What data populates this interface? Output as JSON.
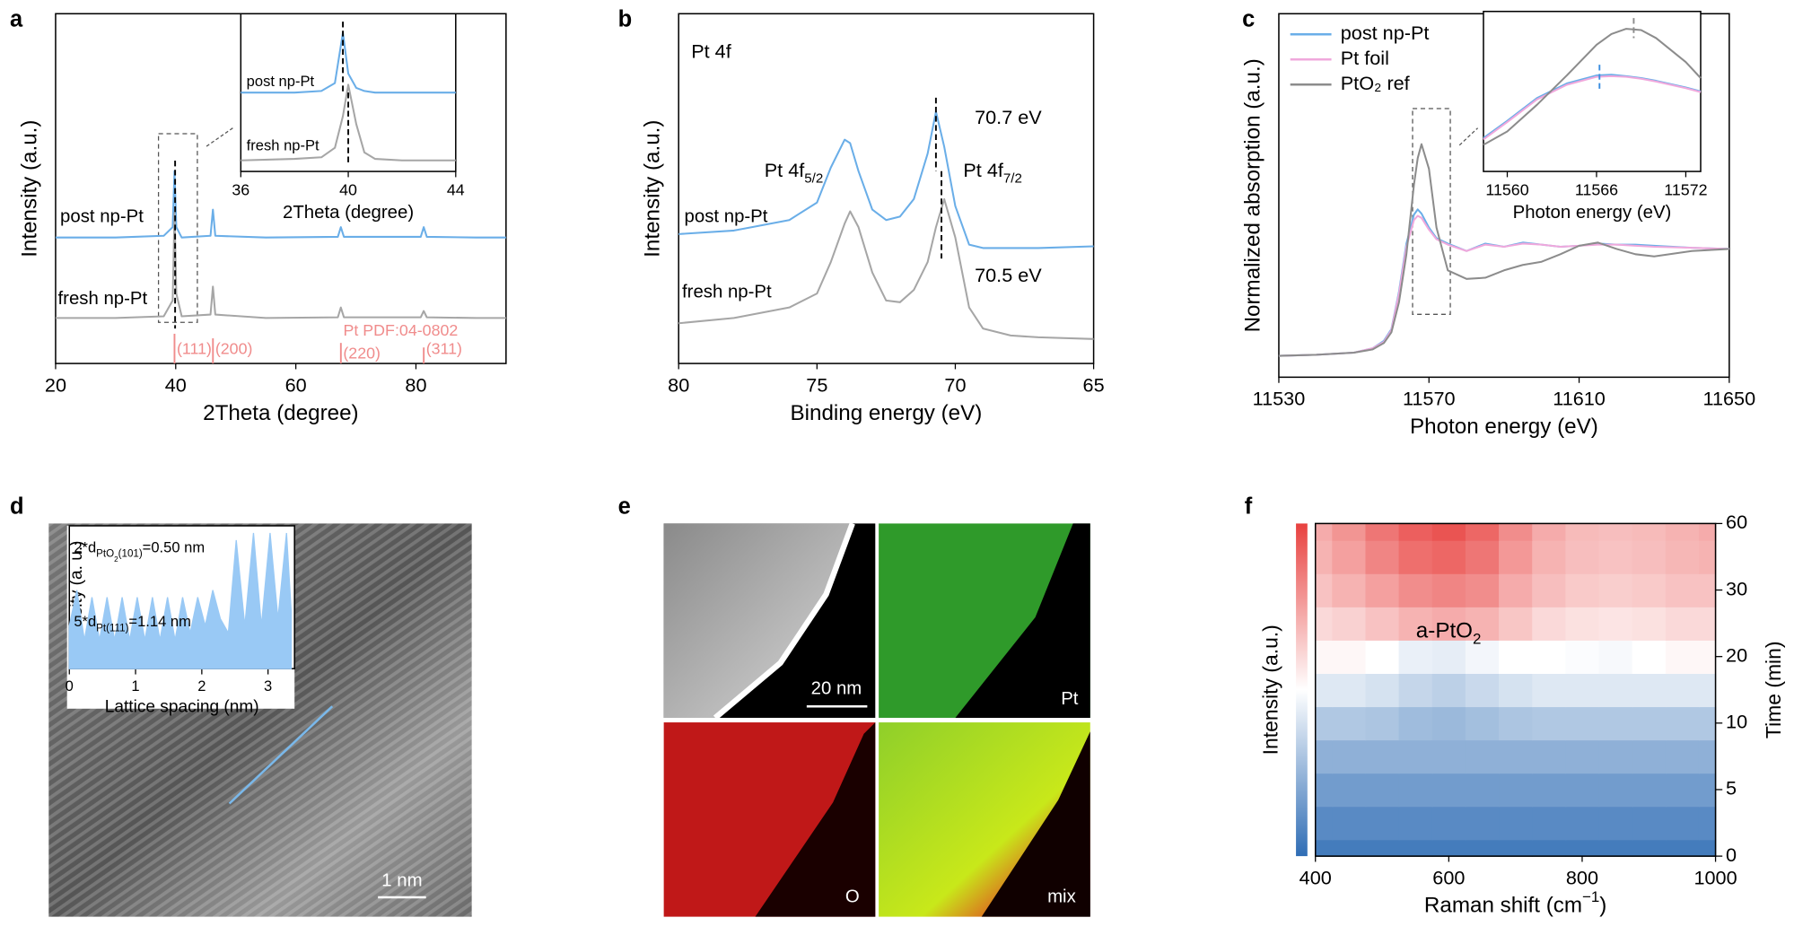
{
  "chart_data": [
    {
      "type": "line",
      "panel": "a",
      "xlabel": "2Theta (degree)",
      "ylabel": "Intensity (a.u.)",
      "x": [
        20,
        30,
        38,
        39.5,
        39.8,
        40.1,
        41,
        45.8,
        46.2,
        46.6,
        55,
        67,
        67.5,
        68,
        80.8,
        81.3,
        81.8,
        90,
        95
      ],
      "xlim": [
        20,
        95
      ],
      "xticks": [
        20,
        40,
        60,
        80
      ],
      "ylim": [
        0,
        10
      ],
      "series": [
        {
          "name": "post np-Pt",
          "color": "#6aaee8",
          "values": [
            3.6,
            3.6,
            3.65,
            3.9,
            5.5,
            3.9,
            3.6,
            3.65,
            4.4,
            3.65,
            3.6,
            3.62,
            3.9,
            3.62,
            3.62,
            3.9,
            3.62,
            3.6,
            3.6
          ]
        },
        {
          "name": "fresh np-Pt",
          "color": "#a6a6a6",
          "values": [
            1.3,
            1.3,
            1.35,
            1.8,
            4.3,
            2.0,
            1.35,
            1.4,
            2.2,
            1.4,
            1.3,
            1.32,
            1.6,
            1.32,
            1.32,
            1.5,
            1.32,
            1.3,
            1.3
          ]
        }
      ],
      "reference": {
        "name": "Pt PDF:04-0802",
        "color": "#f08c8c",
        "positions": [
          39.8,
          46.2,
          67.5,
          81.3
        ],
        "labels": [
          "(111)",
          "(200)",
          "(220)",
          "(311)"
        ]
      },
      "markers": [
        {
          "x": 39.9,
          "y": [
            5.8,
            1.0
          ],
          "color": "#000000"
        }
      ]
    },
    {
      "type": "line",
      "xlabel": "2Theta (degree)",
      "x": [
        36,
        38,
        39,
        39.5,
        39.8,
        40,
        40.3,
        40.6,
        41,
        42,
        44
      ],
      "xlim": [
        36,
        44
      ],
      "xticks": [
        36,
        40,
        44
      ],
      "ylim": [
        0,
        1
      ],
      "series": [
        {
          "name": "post np-Pt",
          "color": "#6aaee8",
          "values": [
            0.5,
            0.5,
            0.51,
            0.56,
            0.88,
            0.62,
            0.53,
            0.51,
            0.5,
            0.5,
            0.5
          ]
        },
        {
          "name": "fresh np-Pt",
          "color": "#a6a6a6",
          "values": [
            0.07,
            0.08,
            0.09,
            0.15,
            0.35,
            0.55,
            0.3,
            0.12,
            0.08,
            0.07,
            0.07
          ]
        }
      ],
      "markers": [
        {
          "x": 39.8,
          "y": [
            0.95,
            0.5
          ],
          "color": "#000000"
        },
        {
          "x": 40.0,
          "y": [
            0.5,
            0.05
          ],
          "color": "#000000"
        }
      ]
    },
    {
      "type": "line",
      "panel": "b",
      "xlabel": "Binding energy (eV)",
      "ylabel": "Intensity (a.u.)",
      "x": [
        80,
        78,
        76,
        75,
        74.5,
        74,
        73.8,
        73.5,
        73,
        72.5,
        72,
        71.5,
        71,
        70.7,
        70.4,
        70,
        69.5,
        69,
        68,
        67,
        65
      ],
      "xlim": [
        80,
        65
      ],
      "xticks": [
        80,
        75,
        70,
        65
      ],
      "ylim": [
        0,
        10
      ],
      "series": [
        {
          "name": "post np-Pt",
          "color": "#6aaee8",
          "values": [
            3.7,
            3.8,
            4.1,
            4.6,
            5.6,
            6.4,
            6.3,
            5.5,
            4.4,
            4.1,
            4.2,
            4.7,
            6.0,
            7.2,
            6.2,
            4.5,
            3.4,
            3.3,
            3.3,
            3.3,
            3.35
          ]
        },
        {
          "name": "fresh np-Pt",
          "color": "#a6a6a6",
          "values": [
            1.15,
            1.3,
            1.6,
            2.0,
            2.9,
            4.0,
            4.35,
            3.9,
            2.6,
            1.8,
            1.75,
            2.1,
            2.9,
            3.9,
            4.7,
            3.6,
            1.6,
            1.0,
            0.8,
            0.75,
            0.7
          ]
        }
      ],
      "annotations": [
        {
          "parts": [
            "Pt 4f"
          ],
          "levels": [
            0
          ]
        },
        {
          "parts": [
            "Pt 4f",
            "5/2"
          ],
          "levels": [
            0,
            1
          ]
        },
        {
          "parts": [
            "Pt 4f",
            "7/2"
          ],
          "levels": [
            0,
            1
          ]
        },
        "70.7 eV",
        "70.5 eV"
      ],
      "markers": [
        {
          "x": 70.7,
          "y": [
            7.6,
            5.5
          ],
          "color": "#000000"
        },
        {
          "x": 70.5,
          "y": [
            5.5,
            3.0
          ],
          "color": "#000000"
        }
      ]
    },
    {
      "type": "line",
      "panel": "c",
      "xlabel": "Photon energy (eV)",
      "ylabel": "Normalized absorption (a.u.)",
      "x": [
        11530,
        11540,
        11550,
        11555,
        11558,
        11560,
        11562,
        11564,
        11566,
        11567,
        11568,
        11570,
        11572,
        11575,
        11580,
        11585,
        11590,
        11595,
        11600,
        11605,
        11610,
        11615,
        11620,
        11625,
        11630,
        11640,
        11650
      ],
      "xlim": [
        11530,
        11650
      ],
      "xticks": [
        11530,
        11570,
        11610,
        11650
      ],
      "ylim": [
        -0.2,
        3.2
      ],
      "legend": "upper left",
      "series": [
        {
          "name": "post np-Pt",
          "color": "#6aaee8",
          "values": [
            0,
            0.01,
            0.03,
            0.07,
            0.14,
            0.25,
            0.6,
            1.05,
            1.32,
            1.37,
            1.33,
            1.2,
            1.1,
            1.05,
            0.98,
            1.05,
            1.02,
            1.06,
            1.04,
            1.02,
            1.03,
            1.05,
            1.04,
            1.04,
            1.03,
            1.01,
            1.0
          ]
        },
        {
          "name": "Pt foil",
          "color": "#f0a8dc",
          "values": [
            0,
            0.01,
            0.03,
            0.07,
            0.13,
            0.24,
            0.58,
            1.02,
            1.27,
            1.31,
            1.29,
            1.18,
            1.09,
            1.04,
            0.98,
            1.04,
            1.02,
            1.05,
            1.04,
            1.02,
            1.03,
            1.04,
            1.04,
            1.03,
            1.02,
            1.01,
            1.0
          ]
        },
        {
          "name": "PtO₂ ref",
          "color": "#8c8c8c",
          "values": [
            0,
            0.01,
            0.03,
            0.06,
            0.12,
            0.22,
            0.5,
            0.95,
            1.6,
            1.85,
            1.98,
            1.75,
            1.2,
            0.8,
            0.72,
            0.73,
            0.8,
            0.85,
            0.88,
            0.95,
            1.03,
            1.06,
            1.0,
            0.95,
            0.93,
            0.98,
            1.0
          ]
        }
      ]
    },
    {
      "type": "line",
      "xlabel": "Photon energy (eV)",
      "x": [
        11558.4,
        11560,
        11562,
        11564,
        11566,
        11567,
        11568,
        11569,
        11570,
        11572,
        11573
      ],
      "xlim": [
        11558.4,
        11573
      ],
      "xticks": [
        11560,
        11566,
        11572
      ],
      "ylim": [
        -0.1,
        1.1
      ],
      "series": [
        {
          "color": "#6aaee8",
          "values": [
            0.15,
            0.28,
            0.45,
            0.56,
            0.62,
            0.625,
            0.615,
            0.6,
            0.58,
            0.53,
            0.5
          ]
        },
        {
          "color": "#f0a8dc",
          "values": [
            0.14,
            0.27,
            0.44,
            0.55,
            0.61,
            0.615,
            0.61,
            0.595,
            0.575,
            0.525,
            0.495
          ]
        },
        {
          "color": "#8c8c8c",
          "values": [
            0.1,
            0.2,
            0.4,
            0.62,
            0.85,
            0.93,
            0.97,
            0.96,
            0.9,
            0.72,
            0.6
          ]
        }
      ],
      "markers": [
        {
          "x": 11568.5,
          "y": [
            1.05,
            0.9
          ],
          "color": "#8c8c8c"
        },
        {
          "x": 11566.2,
          "y": [
            0.7,
            0.5
          ],
          "color": "#3a8ee0"
        }
      ]
    },
    {
      "type": "area",
      "xlabel": "Lattice spacing (nm)",
      "ylabel": "Intensity (a. u.)",
      "x": [
        0,
        0.114,
        0.228,
        0.342,
        0.456,
        0.57,
        0.684,
        0.798,
        0.912,
        1.026,
        1.14,
        1.254,
        1.368,
        1.482,
        1.596,
        1.71,
        1.824,
        1.938,
        2.052,
        2.166,
        2.28,
        2.4,
        2.52,
        2.65,
        2.78,
        2.9,
        3.03,
        3.15,
        3.28,
        3.35
      ],
      "values": [
        0.3,
        0.55,
        0.2,
        0.5,
        0.2,
        0.5,
        0.2,
        0.5,
        0.2,
        0.5,
        0.2,
        0.5,
        0.2,
        0.5,
        0.2,
        0.5,
        0.25,
        0.5,
        0.3,
        0.55,
        0.35,
        0.25,
        0.9,
        0.3,
        0.95,
        0.3,
        0.95,
        0.35,
        0.95,
        0.4
      ],
      "color": "#99c9f5",
      "xlim": [
        0,
        3.4
      ],
      "xticks": [
        0,
        1,
        2,
        3
      ],
      "ylim": [
        0,
        1
      ],
      "annotations": [
        {
          "parts": [
            "2*d",
            "PtO",
            "2",
            "(101)",
            "=0.50 nm"
          ],
          "levels": [
            0,
            1,
            2,
            1,
            0
          ]
        },
        {
          "parts": [
            "5*d",
            "Pt(111)",
            "=1.14 nm"
          ],
          "levels": [
            0,
            1,
            0
          ]
        }
      ]
    },
    {
      "type": "heatmap",
      "panel": "f",
      "xlabel": {
        "parts": [
          "Raman shift (cm",
          "−1",
          ")"
        ],
        "levels": [
          0,
          -1,
          0
        ]
      },
      "ylabel": "Time (min)",
      "colorbar_label": "Intensity (a.u.)",
      "x": [
        400,
        450,
        500,
        550,
        600,
        650,
        700,
        750,
        800,
        850,
        900,
        950,
        1000
      ],
      "y": [
        0,
        2.5,
        5,
        7.5,
        10,
        15,
        20,
        25,
        30,
        45,
        60
      ],
      "z": [
        [
          0.05,
          0.05,
          0.05,
          0.05,
          0.05,
          0.05,
          0.05,
          0.05,
          0.05,
          0.05,
          0.05,
          0.05,
          0.05
        ],
        [
          0.1,
          0.1,
          0.1,
          0.1,
          0.1,
          0.1,
          0.1,
          0.1,
          0.1,
          0.1,
          0.1,
          0.1,
          0.1
        ],
        [
          0.16,
          0.16,
          0.16,
          0.16,
          0.16,
          0.16,
          0.16,
          0.16,
          0.16,
          0.16,
          0.16,
          0.16,
          0.16
        ],
        [
          0.23,
          0.23,
          0.23,
          0.23,
          0.23,
          0.23,
          0.23,
          0.23,
          0.23,
          0.23,
          0.23,
          0.23,
          0.23
        ],
        [
          0.31,
          0.31,
          0.3,
          0.27,
          0.26,
          0.28,
          0.3,
          0.31,
          0.31,
          0.31,
          0.31,
          0.31,
          0.31
        ],
        [
          0.42,
          0.42,
          0.4,
          0.36,
          0.34,
          0.37,
          0.4,
          0.42,
          0.42,
          0.42,
          0.42,
          0.42,
          0.42
        ],
        [
          0.52,
          0.52,
          0.5,
          0.45,
          0.44,
          0.47,
          0.5,
          0.5,
          0.49,
          0.48,
          0.5,
          0.52,
          0.52
        ],
        [
          0.6,
          0.62,
          0.66,
          0.7,
          0.72,
          0.7,
          0.65,
          0.6,
          0.58,
          0.57,
          0.58,
          0.6,
          0.6
        ],
        [
          0.66,
          0.7,
          0.75,
          0.8,
          0.82,
          0.8,
          0.72,
          0.67,
          0.64,
          0.63,
          0.64,
          0.66,
          0.66
        ],
        [
          0.7,
          0.75,
          0.82,
          0.88,
          0.9,
          0.86,
          0.77,
          0.7,
          0.67,
          0.66,
          0.67,
          0.69,
          0.7
        ],
        [
          0.72,
          0.78,
          0.86,
          0.92,
          0.95,
          0.9,
          0.8,
          0.72,
          0.68,
          0.67,
          0.68,
          0.7,
          0.72
        ]
      ],
      "xlim": [
        400,
        1000
      ],
      "xticks": [
        400,
        600,
        800,
        1000
      ],
      "ylim": [
        0,
        60
      ],
      "yticks": [
        0,
        5,
        10,
        20,
        30,
        60
      ],
      "zlim": [
        0,
        1
      ],
      "colors": [
        "#2f6db5",
        "#ffffff",
        "#e8413f"
      ],
      "annotations": [
        {
          "parts": [
            "a-PtO",
            "2"
          ],
          "levels": [
            0,
            1
          ]
        }
      ]
    }
  ],
  "images": {
    "d": {
      "panel": "d",
      "scale_bar": "1 nm"
    },
    "e": {
      "panel": "e",
      "scale_bar": "20 nm",
      "labels": [
        "Pt",
        "O",
        "mix"
      ]
    }
  }
}
